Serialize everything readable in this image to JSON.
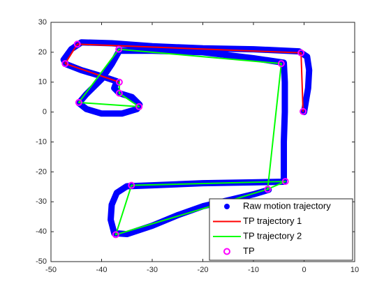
{
  "chart_data": {
    "type": "line",
    "xlim": [
      -50,
      10
    ],
    "xticks": [
      -50,
      -40,
      -30,
      -20,
      -10,
      0,
      10
    ],
    "ylim": [
      -50,
      30
    ],
    "yticks": [
      -50,
      -40,
      -30,
      -20,
      -10,
      0,
      10,
      20,
      30
    ],
    "legend": "southeast",
    "series": [
      {
        "name": "Raw motion trajectory",
        "color": "#0000ff",
        "marker": "dot",
        "x": [
          0,
          0.3,
          0.8,
          1,
          0.6,
          -1,
          -10,
          -20,
          -30,
          -38,
          -44,
          -46,
          -47.5,
          -47,
          -44,
          -40,
          -37,
          -37.5,
          -36.5,
          -34,
          -32.5,
          -33,
          -36,
          -40,
          -43,
          -44.5,
          -43,
          -40,
          -38,
          -36.5,
          -30,
          -20,
          -10,
          -4,
          -3.8,
          -3.8,
          -4,
          -4,
          -4,
          -10,
          -20,
          -30,
          -35,
          -37,
          -38,
          -38.2,
          -37.5,
          -35,
          -30,
          -25,
          -20,
          -15,
          -10,
          -7
        ],
        "y": [
          0,
          3,
          8,
          14,
          18.5,
          20.3,
          21,
          21.3,
          22,
          23,
          23.3,
          21,
          17.5,
          16,
          14,
          12,
          10.3,
          8,
          6.3,
          5,
          2.5,
          1,
          -0.5,
          -0.5,
          1,
          3,
          6,
          11,
          16,
          20.5,
          20.5,
          20,
          18,
          16.5,
          10,
          0,
          -10,
          -20,
          -23.3,
          -23.5,
          -23.8,
          -24.5,
          -24.8,
          -27,
          -31,
          -36,
          -40.5,
          -40.8,
          -38,
          -34.5,
          -31.5,
          -29.5,
          -27.5,
          -26
        ]
      },
      {
        "name": "TP trajectory 1",
        "color": "#ff0000",
        "marker": "none",
        "x": [
          -36.5,
          -47.2,
          -44.8,
          -0.6,
          -0.2
        ],
        "y": [
          10,
          16.2,
          22.7,
          19.8,
          0.2
        ]
      },
      {
        "name": "TP trajectory 2",
        "color": "#00ff00",
        "marker": "none",
        "x": [
          -36.5,
          -36.5,
          -32.6,
          -44.5,
          -36.6,
          -4.5,
          -7.2,
          -3.7,
          -34.1,
          -37.2,
          -7.2
        ],
        "y": [
          10,
          6.3,
          1.8,
          3.2,
          21,
          16.2,
          -25.8,
          -23.2,
          -24.5,
          -41,
          -25.8
        ]
      },
      {
        "name": "TP",
        "color": "#ff00ff",
        "marker": "circle",
        "x": [
          -44.8,
          -47.2,
          -36.5,
          -36.5,
          -32.6,
          -44.5,
          -36.6,
          -4.5,
          -0.6,
          -0.2,
          -3.7,
          -7.2,
          -34.1,
          -37.2
        ],
        "y": [
          22.7,
          16.2,
          10,
          6.3,
          1.8,
          3.2,
          21,
          16.2,
          19.8,
          0.2,
          -23.2,
          -25.8,
          -24.5,
          -41
        ]
      }
    ]
  }
}
